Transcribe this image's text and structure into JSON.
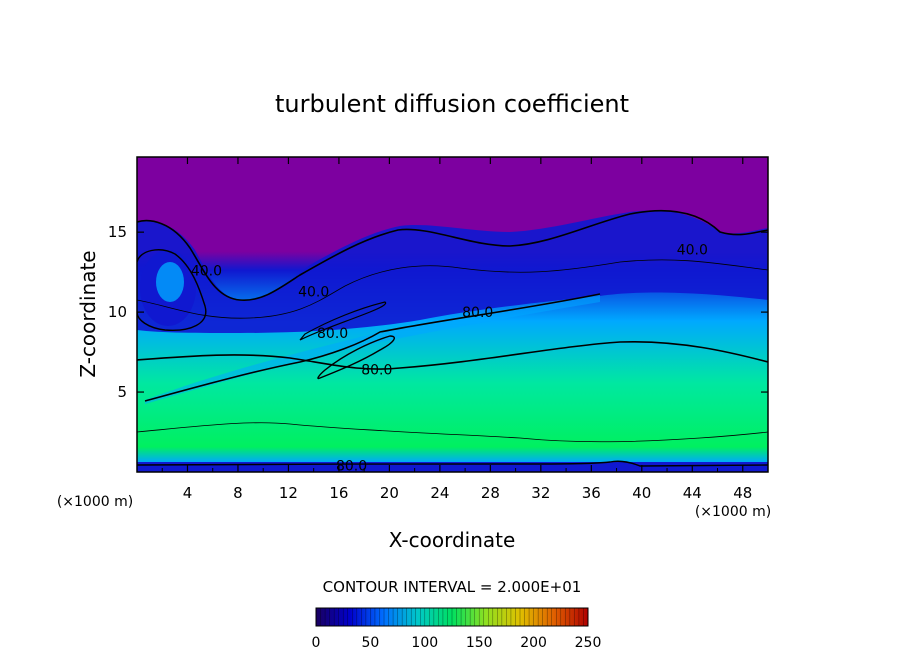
{
  "chart_data": {
    "type": "heatmap",
    "title": "turbulent diffusion coefficient",
    "xlabel": "X-coordinate",
    "ylabel": "Z-coordinate",
    "x_unit_label": "(×1000 m)",
    "y_unit_label": "(×1000 m)",
    "xlim": [
      0,
      50
    ],
    "ylim": [
      0,
      19.7
    ],
    "x_ticks": [
      4,
      8,
      12,
      16,
      20,
      24,
      28,
      32,
      36,
      40,
      44,
      48
    ],
    "y_ticks": [
      5,
      10,
      15
    ],
    "contour_interval_text": "CONTOUR INTERVAL = 2.000E+01",
    "contour_labels": [
      {
        "text": "40.0",
        "x": 5.5,
        "z": 12.6
      },
      {
        "text": "40.0",
        "x": 14.0,
        "z": 11.3
      },
      {
        "text": "40.0",
        "x": 44.0,
        "z": 13.9
      },
      {
        "text": "80.0",
        "x": 15.5,
        "z": 8.7
      },
      {
        "text": "80.0",
        "x": 27.0,
        "z": 10.0
      },
      {
        "text": "80.0",
        "x": 19.0,
        "z": 6.4
      },
      {
        "text": "80.0",
        "x": 17.0,
        "z": 0.4
      }
    ],
    "colorbar": {
      "min": 0,
      "max": 250,
      "ticks": [
        0,
        50,
        100,
        150,
        200,
        250
      ],
      "colors": [
        "#1a0060",
        "#0000cc",
        "#0070ff",
        "#00c8c8",
        "#00e060",
        "#90e020",
        "#e0c000",
        "#e06000",
        "#b00000"
      ]
    },
    "field_colors": {
      "top": "#7d00a0",
      "upper": "#1018d0",
      "mid": "#00a8ff",
      "lower": "#00e8a0",
      "bottom": "#00f060"
    }
  }
}
